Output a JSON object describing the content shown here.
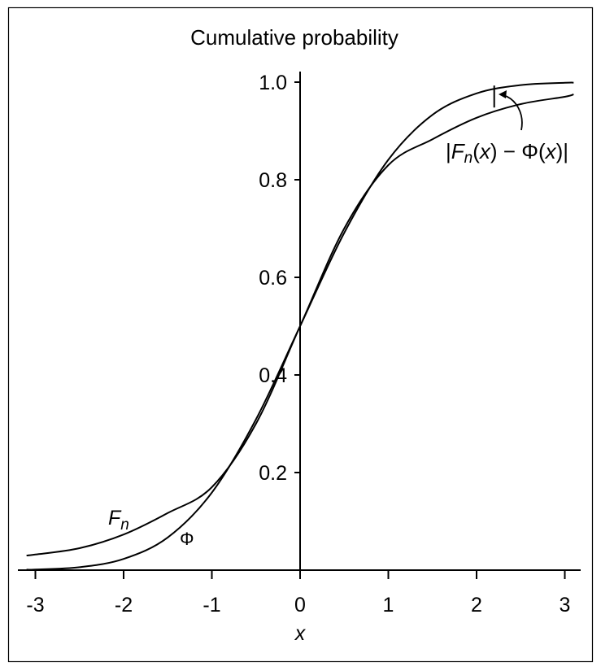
{
  "chart_data": {
    "type": "line",
    "title": "Cumulative probability",
    "xlabel": "x",
    "ylabel": "",
    "xlim": [
      -3.2,
      3.2
    ],
    "ylim": [
      0,
      1.02
    ],
    "x_ticks": [
      "-3",
      "-2",
      "-1",
      "0",
      "1",
      "2",
      "3"
    ],
    "y_ticks": [
      "0.2",
      "0.4",
      "0.6",
      "0.8",
      "1.0"
    ],
    "grid": false,
    "legend": "none",
    "x": [
      -3.1,
      -3,
      -2.5,
      -2,
      -1.5,
      -1,
      -0.5,
      0,
      0.5,
      1,
      1.5,
      2,
      2.5,
      3,
      3.1
    ],
    "series": [
      {
        "name": "Fn",
        "label_main": "F",
        "label_sub": "n",
        "values": [
          0.03,
          0.032,
          0.045,
          0.073,
          0.117,
          0.17,
          0.3,
          0.5,
          0.7,
          0.83,
          0.883,
          0.927,
          0.955,
          0.97,
          0.975
        ]
      },
      {
        "name": "Φ",
        "label_main": "Φ",
        "label_sub": "",
        "values": [
          0.001,
          0.0013,
          0.006,
          0.023,
          0.067,
          0.159,
          0.309,
          0.5,
          0.691,
          0.841,
          0.933,
          0.977,
          0.994,
          0.9987,
          0.999
        ]
      }
    ],
    "annotation": {
      "x": 2.2,
      "parts": [
        "|",
        "F",
        "n",
        "(",
        "x",
        ") − Φ(",
        "x",
        ")|"
      ]
    },
    "colors": {
      "line": "#000000",
      "background": "#ffffff"
    }
  }
}
